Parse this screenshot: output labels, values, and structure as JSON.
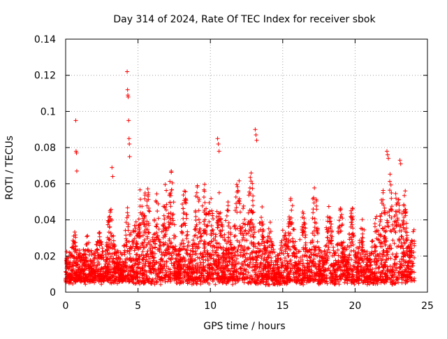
{
  "chart_data": {
    "type": "scatter",
    "title": "Day 314 of 2024, Rate Of TEC Index for receiver sbok",
    "xlabel": "GPS time / hours",
    "ylabel": "ROTI / TECUs",
    "xlim": [
      0,
      25
    ],
    "ylim": [
      0,
      0.14
    ],
    "x_ticks": [
      "0",
      "5",
      "10",
      "15",
      "20",
      "25"
    ],
    "y_ticks": [
      "0",
      "0.02",
      "0.04",
      "0.06",
      "0.08",
      "0.1",
      "0.12",
      "0.14"
    ],
    "grid": true,
    "marker": "+",
    "marker_color": "#ff0000",
    "series": [
      {
        "x": [
          0.7,
          0.72,
          0.75,
          0.77,
          3.2,
          3.25,
          4.25,
          4.28,
          4.3,
          4.32,
          4.35,
          4.38,
          4.4,
          4.42,
          10.5,
          10.55,
          10.6,
          13.1,
          13.15,
          13.2,
          22.2,
          22.25,
          22.3,
          23.1,
          23.15
        ],
        "y": [
          0.095,
          0.078,
          0.077,
          0.067,
          0.069,
          0.064,
          0.122,
          0.112,
          0.109,
          0.108,
          0.095,
          0.085,
          0.082,
          0.075,
          0.085,
          0.082,
          0.078,
          0.09,
          0.087,
          0.084,
          0.078,
          0.076,
          0.074,
          0.073,
          0.071
        ]
      }
    ]
  }
}
